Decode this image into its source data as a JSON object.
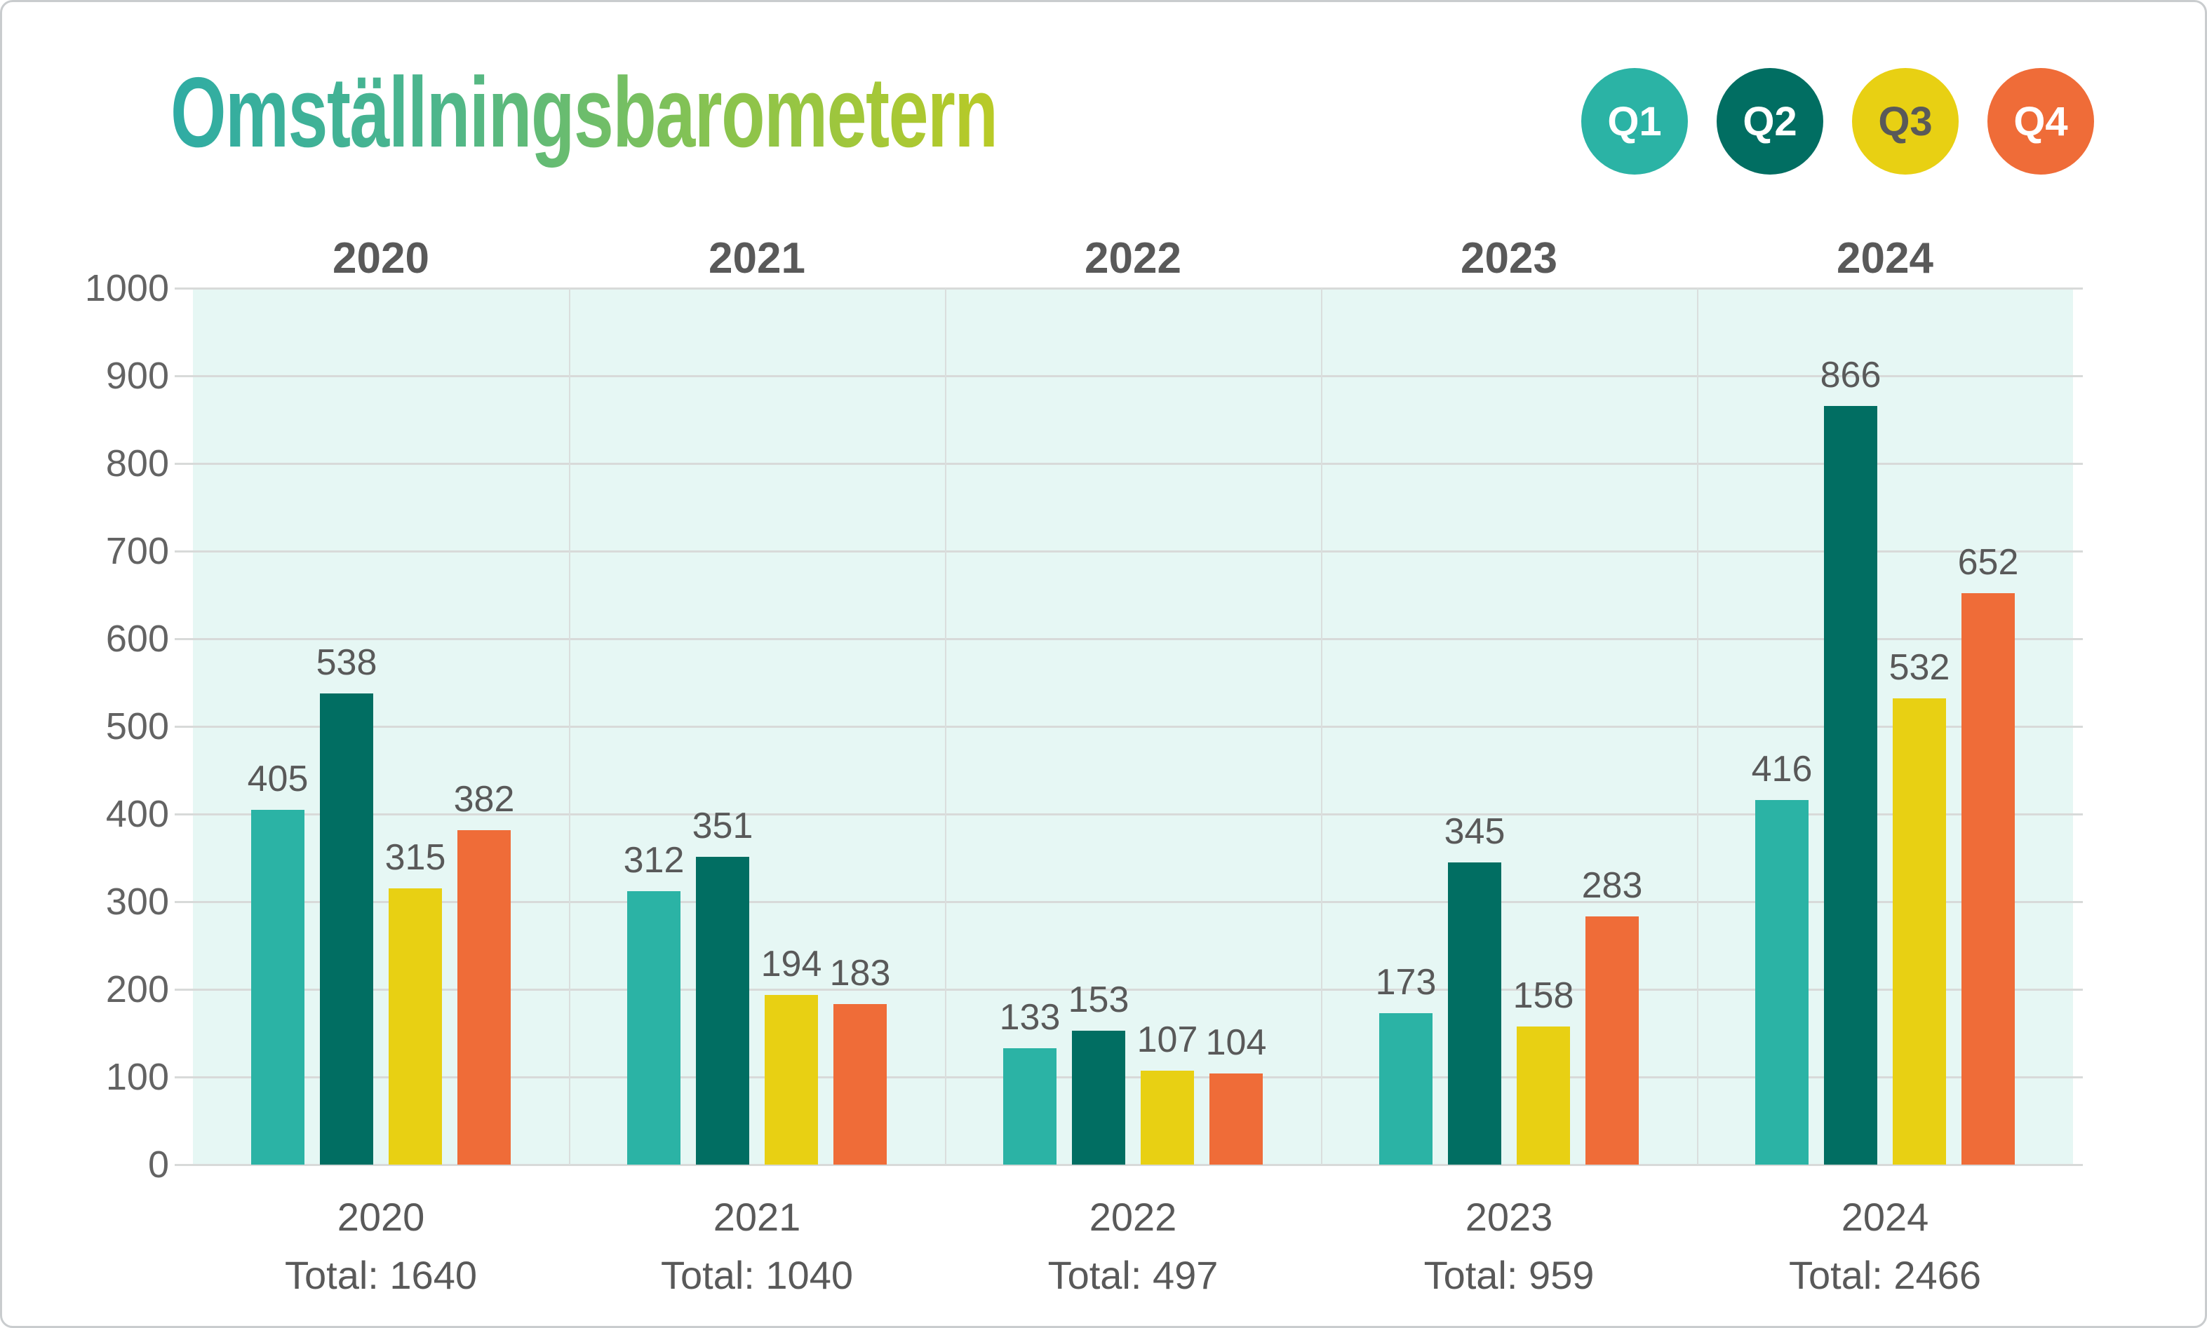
{
  "chart_data": {
    "type": "bar",
    "title": "Omställningsbarometern",
    "categories": [
      "2020",
      "2021",
      "2022",
      "2023",
      "2024"
    ],
    "series": [
      {
        "name": "Q1",
        "color": "#2BB3A5",
        "label_text_color": "#FFFFFF",
        "values": [
          405,
          312,
          133,
          173,
          416
        ]
      },
      {
        "name": "Q2",
        "color": "#016E62",
        "label_text_color": "#FFFFFF",
        "values": [
          538,
          351,
          153,
          345,
          866
        ]
      },
      {
        "name": "Q3",
        "color": "#E8D013",
        "label_text_color": "#595959",
        "values": [
          315,
          194,
          107,
          158,
          532
        ]
      },
      {
        "name": "Q4",
        "color": "#EF6C38",
        "label_text_color": "#FFFFFF",
        "values": [
          382,
          183,
          104,
          283,
          652
        ]
      }
    ],
    "totals": [
      1640,
      1040,
      497,
      959,
      2466
    ],
    "total_prefix": "Total: ",
    "ylim": [
      0,
      1000
    ],
    "ytick_step": 100,
    "yticks": [
      0,
      100,
      200,
      300,
      400,
      500,
      600,
      700,
      800,
      900,
      1000
    ],
    "grid": true,
    "legend_position": "top-right",
    "plot_bg": "#E6F7F4",
    "grid_color": "#D8DAD9",
    "label_color": "#595959",
    "title_gradient": [
      "#2FACA4",
      "#4DB68C",
      "#8CC44C",
      "#B9CA26"
    ]
  }
}
